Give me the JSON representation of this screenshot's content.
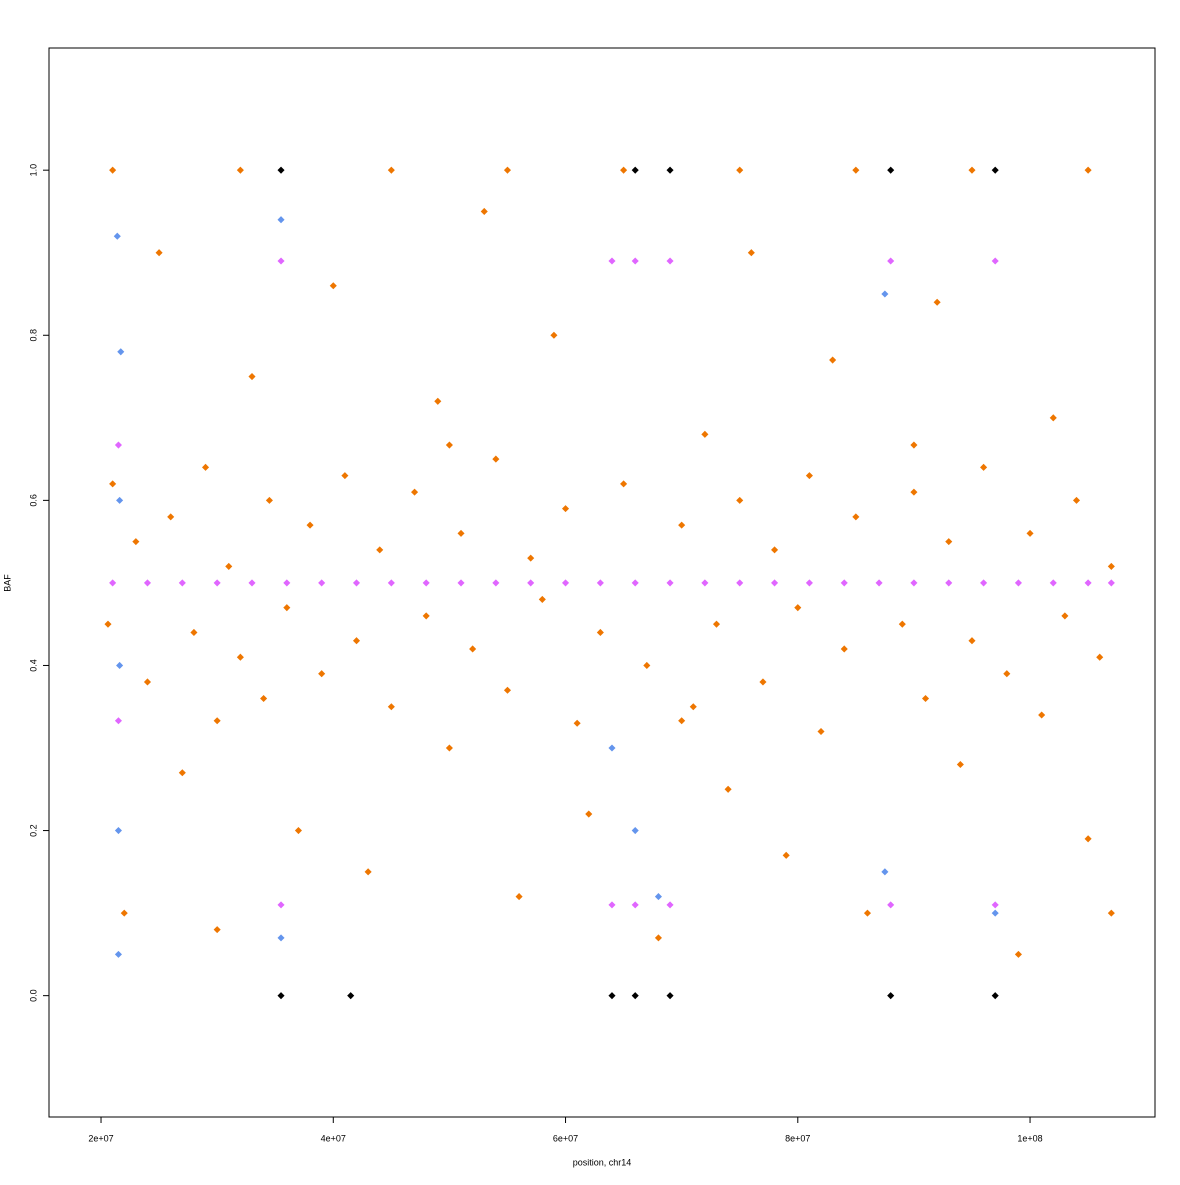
{
  "chart_data": {
    "type": "scatter",
    "xlabel": "position, chr14",
    "ylabel": "BAF",
    "xlim": [
      15520000,
      110760000
    ],
    "ylim": [
      -0.147,
      1.148
    ],
    "xticks": [
      {
        "value": 20000000,
        "label": "2e+07"
      },
      {
        "value": 40000000,
        "label": "4e+07"
      },
      {
        "value": 60000000,
        "label": "6e+07"
      },
      {
        "value": 80000000,
        "label": "8e+07"
      },
      {
        "value": 100000000,
        "label": "1e+08"
      }
    ],
    "yticks": [
      {
        "value": 0,
        "label": "0.0"
      },
      0.2,
      0.4,
      0.6,
      0.8,
      {
        "value": 1,
        "label": "1.0"
      }
    ],
    "series": [
      {
        "color": "#ee7600",
        "x": [
          20600000,
          21000000,
          22000000,
          23000000,
          24000000,
          25000000,
          26000000,
          27000000,
          28000000,
          29000000,
          30000000,
          31000000,
          32000000,
          33000000,
          34000000,
          34500000,
          36000000,
          37000000,
          38000000,
          39000000,
          40000000,
          41000000,
          42000000,
          43000000,
          44000000,
          45000000,
          47000000,
          48000000,
          49000000,
          50000000,
          51000000,
          52000000,
          53000000,
          54000000,
          55000000,
          56000000,
          57000000,
          58000000,
          59000000,
          60000000,
          61000000,
          62000000,
          63000000,
          65000000,
          67000000,
          68000000,
          70000000,
          71000000,
          72000000,
          73000000,
          74000000,
          75000000,
          76000000,
          77000000,
          78000000,
          79000000,
          80000000,
          81000000,
          82000000,
          83000000,
          84000000,
          85000000,
          86000000,
          89000000,
          90000000,
          91000000,
          92000000,
          93000000,
          94000000,
          95000000,
          96000000,
          98000000,
          99000000,
          100000000,
          101000000,
          102000000,
          103000000,
          104000000,
          105000000,
          106000000,
          107000000,
          107000000,
          21000000,
          32000000,
          45000000,
          55000000,
          65000000,
          75000000,
          85000000,
          95000000,
          105000000,
          30000000,
          50000000,
          70000000,
          90000000
        ],
        "values": [
          0.45,
          0.62,
          0.1,
          0.55,
          0.38,
          0.9,
          0.58,
          0.27,
          0.44,
          0.64,
          0.08,
          0.52,
          0.41,
          0.75,
          0.36,
          0.6,
          0.47,
          0.2,
          0.57,
          0.39,
          0.86,
          0.63,
          0.43,
          0.15,
          0.54,
          0.35,
          0.61,
          0.46,
          0.72,
          0.3,
          0.56,
          0.42,
          0.95,
          0.65,
          0.37,
          0.12,
          0.53,
          0.48,
          0.8,
          0.59,
          0.33,
          0.22,
          0.44,
          0.62,
          0.4,
          0.07,
          0.57,
          0.35,
          0.68,
          0.45,
          0.25,
          0.6,
          0.9,
          0.38,
          0.54,
          0.17,
          0.47,
          0.63,
          0.32,
          0.77,
          0.42,
          0.58,
          0.1,
          0.45,
          0.61,
          0.36,
          0.84,
          0.55,
          0.28,
          0.43,
          0.64,
          0.39,
          0.05,
          0.56,
          0.34,
          0.7,
          0.46,
          0.6,
          0.19,
          0.41,
          0.52,
          0.1,
          1,
          1,
          1,
          1,
          1,
          1,
          1,
          1,
          1,
          0.333,
          0.667,
          0.333,
          0.667
        ]
      },
      {
        "color": "#6495ed",
        "x": [
          21500000,
          21500000,
          21600000,
          21600000,
          21700000,
          21400000,
          35500000,
          35500000,
          64000000,
          66000000,
          68000000,
          87500000,
          87500000,
          97000000
        ],
        "values": [
          0.05,
          0.2,
          0.4,
          0.6,
          0.78,
          0.92,
          0.07,
          0.94,
          0.3,
          0.2,
          0.12,
          0.15,
          0.85,
          0.1
        ]
      },
      {
        "color": "#e066ff",
        "x": [
          21000000,
          24000000,
          27000000,
          30000000,
          33000000,
          36000000,
          39000000,
          42000000,
          45000000,
          48000000,
          51000000,
          54000000,
          57000000,
          60000000,
          63000000,
          66000000,
          69000000,
          72000000,
          75000000,
          78000000,
          81000000,
          84000000,
          87000000,
          90000000,
          93000000,
          96000000,
          99000000,
          102000000,
          105000000,
          107000000,
          35500000,
          64000000,
          66000000,
          69000000,
          88000000,
          97000000,
          35500000,
          64000000,
          66000000,
          69000000,
          88000000,
          97000000,
          21500000,
          21500000
        ],
        "values": [
          0.5,
          0.5,
          0.5,
          0.5,
          0.5,
          0.5,
          0.5,
          0.5,
          0.5,
          0.5,
          0.5,
          0.5,
          0.5,
          0.5,
          0.5,
          0.5,
          0.5,
          0.5,
          0.5,
          0.5,
          0.5,
          0.5,
          0.5,
          0.5,
          0.5,
          0.5,
          0.5,
          0.5,
          0.5,
          0.5,
          0.89,
          0.89,
          0.89,
          0.89,
          0.89,
          0.89,
          0.11,
          0.11,
          0.11,
          0.11,
          0.11,
          0.11,
          0.667,
          0.333
        ]
      },
      {
        "color": "#000000",
        "x": [
          35500000,
          66000000,
          69000000,
          88000000,
          97000000,
          35500000,
          66000000,
          69000000,
          88000000,
          97000000,
          41500000,
          64000000
        ],
        "values": [
          1,
          1,
          1,
          1,
          1,
          0,
          0,
          0,
          0,
          0,
          0,
          0
        ]
      }
    ]
  }
}
